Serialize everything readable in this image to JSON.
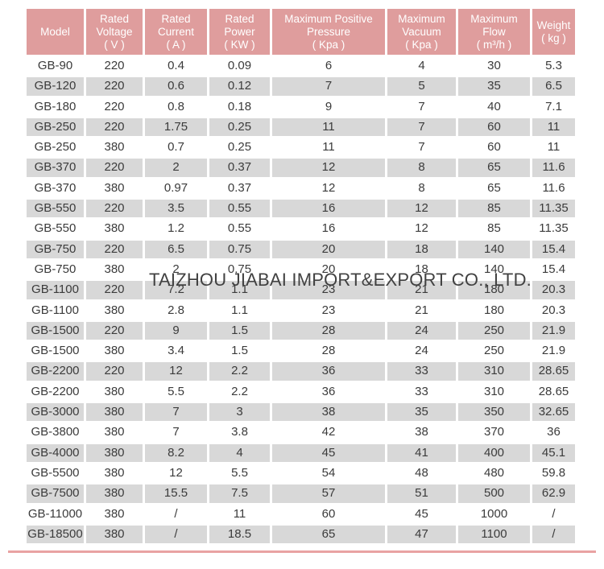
{
  "theme": {
    "header_bg": "#df9d9d",
    "header_text": "#ffffff",
    "row_alt_bg": "#d8d8d8",
    "body_text": "#3b3b3b",
    "watermark_color": "#414141",
    "accent_line": "#e9a2a2"
  },
  "watermark": {
    "text": "TAIZHOU JIABAI IMPORT&EXPORT CO., LTD."
  },
  "table": {
    "columns": [
      {
        "id": "model",
        "lines": [
          "Model"
        ]
      },
      {
        "id": "voltage",
        "lines": [
          "Rated",
          "Voltage",
          "( V )"
        ]
      },
      {
        "id": "current",
        "lines": [
          "Rated",
          "Current",
          "( A )"
        ]
      },
      {
        "id": "power",
        "lines": [
          "Rated",
          "Power",
          "( KW )"
        ]
      },
      {
        "id": "pressure",
        "lines": [
          "Maximum Positive",
          "Pressure",
          "( Kpa )"
        ]
      },
      {
        "id": "vacuum",
        "lines": [
          "Maximum",
          "Vacuum",
          "( Kpa )"
        ]
      },
      {
        "id": "flow",
        "lines": [
          "Maximum",
          "Flow",
          "( m³/h )"
        ]
      },
      {
        "id": "weight",
        "lines": [
          "Weight",
          "( kg )"
        ]
      }
    ],
    "rows": [
      {
        "cells": [
          "GB-90",
          "220",
          "0.4",
          "0.09",
          "6",
          "4",
          "30",
          "5.3"
        ]
      },
      {
        "cells": [
          "GB-120",
          "220",
          "0.6",
          "0.12",
          "7",
          "5",
          "35",
          "6.5"
        ]
      },
      {
        "cells": [
          "GB-180",
          "220",
          "0.8",
          "0.18",
          "9",
          "7",
          "40",
          "7.1"
        ]
      },
      {
        "cells": [
          "GB-250",
          "220",
          "1.75",
          "0.25",
          "11",
          "7",
          "60",
          "11"
        ]
      },
      {
        "cells": [
          "GB-250",
          "380",
          "0.7",
          "0.25",
          "11",
          "7",
          "60",
          "11"
        ]
      },
      {
        "cells": [
          "GB-370",
          "220",
          "2",
          "0.37",
          "12",
          "8",
          "65",
          "11.6"
        ]
      },
      {
        "cells": [
          "GB-370",
          "380",
          "0.97",
          "0.37",
          "12",
          "8",
          "65",
          "11.6"
        ]
      },
      {
        "cells": [
          "GB-550",
          "220",
          "3.5",
          "0.55",
          "16",
          "12",
          "85",
          "11.35"
        ]
      },
      {
        "cells": [
          "GB-550",
          "380",
          "1.2",
          "0.55",
          "16",
          "12",
          "85",
          "11.35"
        ]
      },
      {
        "cells": [
          "GB-750",
          "220",
          "6.5",
          "0.75",
          "20",
          "18",
          "140",
          "15.4"
        ]
      },
      {
        "cells": [
          "GB-750",
          "380",
          "2",
          "0.75",
          "20",
          "18",
          "140",
          "15.4"
        ]
      },
      {
        "cells": [
          "GB-1100",
          "220",
          "7.2",
          "1.1",
          "23",
          "21",
          "180",
          "20.3"
        ]
      },
      {
        "cells": [
          "GB-1100",
          "380",
          "2.8",
          "1.1",
          "23",
          "21",
          "180",
          "20.3"
        ]
      },
      {
        "cells": [
          "GB-1500",
          "220",
          "9",
          "1.5",
          "28",
          "24",
          "250",
          "21.9"
        ]
      },
      {
        "cells": [
          "GB-1500",
          "380",
          "3.4",
          "1.5",
          "28",
          "24",
          "250",
          "21.9"
        ]
      },
      {
        "cells": [
          "GB-2200",
          "220",
          "12",
          "2.2",
          "36",
          "33",
          "310",
          "28.65"
        ]
      },
      {
        "cells": [
          "GB-2200",
          "380",
          "5.5",
          "2.2",
          "36",
          "33",
          "310",
          "28.65"
        ]
      },
      {
        "cells": [
          "GB-3000",
          "380",
          "7",
          "3",
          "38",
          "35",
          "350",
          "32.65"
        ]
      },
      {
        "cells": [
          "GB-3800",
          "380",
          "7",
          "3.8",
          "42",
          "38",
          "370",
          "36"
        ]
      },
      {
        "cells": [
          "GB-4000",
          "380",
          "8.2",
          "4",
          "45",
          "41",
          "400",
          "45.1"
        ]
      },
      {
        "cells": [
          "GB-5500",
          "380",
          "12",
          "5.5",
          "54",
          "48",
          "480",
          "59.8"
        ]
      },
      {
        "cells": [
          "GB-7500",
          "380",
          "15.5",
          "7.5",
          "57",
          "51",
          "500",
          "62.9"
        ]
      },
      {
        "cells": [
          "GB-11000",
          "380",
          "/",
          "11",
          "60",
          "45",
          "1000",
          "/"
        ]
      },
      {
        "cells": [
          "GB-18500",
          "380",
          "/",
          "18.5",
          "65",
          "47",
          "1100",
          "/"
        ]
      }
    ]
  }
}
